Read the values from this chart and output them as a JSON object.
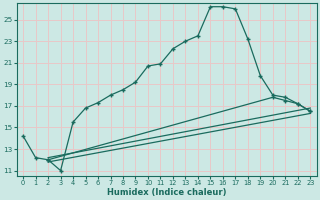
{
  "xlabel": "Humidex (Indice chaleur)",
  "bg_color": "#cce8e4",
  "grid_color": "#e8c8c8",
  "line_color": "#1a6b5e",
  "xlim": [
    -0.5,
    23.5
  ],
  "ylim": [
    10.5,
    26.5
  ],
  "yticks": [
    11,
    13,
    15,
    17,
    19,
    21,
    23,
    25
  ],
  "xticks": [
    0,
    1,
    2,
    3,
    4,
    5,
    6,
    7,
    8,
    9,
    10,
    11,
    12,
    13,
    14,
    15,
    16,
    17,
    18,
    19,
    20,
    21,
    22,
    23
  ],
  "curve_x": [
    0,
    1,
    2,
    3,
    4,
    5,
    6,
    7,
    8,
    9,
    10,
    11,
    12,
    13,
    14,
    15,
    16,
    17,
    18,
    19,
    20,
    21,
    22,
    23
  ],
  "curve_y": [
    14.2,
    12.2,
    12.0,
    11.0,
    15.5,
    16.8,
    17.3,
    18.0,
    18.5,
    19.2,
    20.7,
    20.9,
    22.3,
    23.0,
    23.5,
    26.2,
    26.2,
    26.0,
    23.2,
    19.8,
    18.0,
    17.8,
    17.2,
    16.5
  ],
  "line2_x": [
    2,
    20,
    21,
    22,
    23
  ],
  "line2_y": [
    12.0,
    17.8,
    17.5,
    17.2,
    16.5
  ],
  "line3_x": [
    2,
    23
  ],
  "line3_y": [
    11.8,
    16.3
  ],
  "line4_x": [
    2,
    23
  ],
  "line4_y": [
    12.2,
    16.8
  ]
}
